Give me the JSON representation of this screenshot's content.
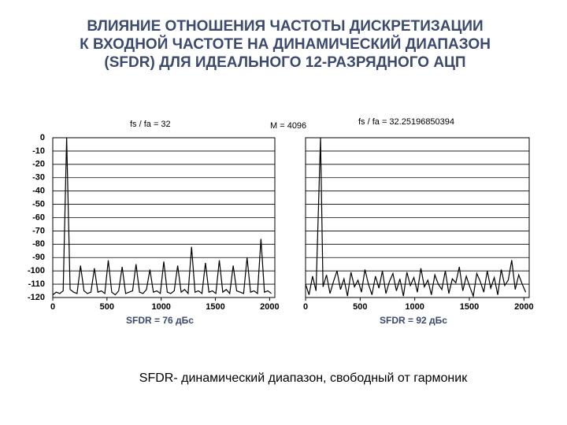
{
  "title": [
    "ВЛИЯНИЕ ОТНОШЕНИЯ ЧАСТОТЫ ДИСКРЕТИЗАЦИИ",
    "К ВХОДНОЙ ЧАСТОТЕ НА ДИНАМИЧЕСКИЙ ДИАПАЗОН",
    "(SFDR) ДЛЯ ИДЕАЛЬНОГО 12-РАЗРЯДНОГО АЦП"
  ],
  "annotation": "M = 4096",
  "caption": "SFDR- динамический диапазон, свободный от гармоник",
  "chart_data": [
    {
      "type": "line",
      "subtitle": "fs / fa = 32",
      "x_label": "SFDR = 76 дБс",
      "color": "#000000",
      "x": [
        0,
        32,
        64,
        96,
        128,
        160,
        192,
        224,
        256,
        288,
        320,
        352,
        384,
        416,
        448,
        480,
        512,
        544,
        576,
        608,
        640,
        672,
        704,
        736,
        768,
        800,
        832,
        864,
        896,
        928,
        960,
        992,
        1024,
        1056,
        1088,
        1120,
        1152,
        1184,
        1216,
        1248,
        1280,
        1312,
        1344,
        1376,
        1408,
        1440,
        1472,
        1504,
        1536,
        1568,
        1600,
        1632,
        1664,
        1696,
        1728,
        1760,
        1792,
        1824,
        1856,
        1888,
        1920,
        1952,
        1984,
        2016
      ],
      "values": [
        -118,
        -116,
        -117,
        -115,
        0,
        -114,
        -116,
        -117,
        -96,
        -115,
        -117,
        -116,
        -98,
        -116,
        -115,
        -117,
        -92,
        -116,
        -118,
        -115,
        -97,
        -117,
        -116,
        -115,
        -95,
        -116,
        -117,
        -114,
        -99,
        -116,
        -115,
        -117,
        -93,
        -116,
        -117,
        -115,
        -96,
        -116,
        -114,
        -117,
        -82,
        -116,
        -115,
        -117,
        -94,
        -116,
        -115,
        -117,
        -92,
        -116,
        -114,
        -117,
        -96,
        -115,
        -116,
        -117,
        -90,
        -116,
        -115,
        -117,
        -76,
        -116,
        -115,
        -117
      ],
      "xlim": [
        0,
        2048
      ],
      "ylim": [
        -120,
        0
      ],
      "xticks": [
        0,
        500,
        1000,
        1500,
        2000
      ],
      "yticks": [
        0,
        -10,
        -20,
        -30,
        -40,
        -50,
        -60,
        -70,
        -80,
        -90,
        -100,
        -110,
        -120
      ],
      "grid": true,
      "ytick_labels": true
    },
    {
      "type": "line",
      "subtitle": "fs / fa = 32.25196850394",
      "x_label": "SFDR = 92 дБс",
      "color": "#000000",
      "x": [
        0,
        32,
        64,
        96,
        137,
        160,
        192,
        224,
        256,
        288,
        320,
        352,
        384,
        416,
        448,
        480,
        512,
        544,
        576,
        608,
        640,
        672,
        704,
        736,
        768,
        800,
        832,
        864,
        896,
        928,
        960,
        992,
        1024,
        1056,
        1088,
        1120,
        1152,
        1184,
        1216,
        1248,
        1280,
        1312,
        1344,
        1376,
        1408,
        1440,
        1472,
        1504,
        1536,
        1568,
        1600,
        1632,
        1664,
        1696,
        1728,
        1760,
        1792,
        1824,
        1856,
        1888,
        1920,
        1952,
        1984,
        2016
      ],
      "values": [
        -110,
        -118,
        -104,
        -115,
        0,
        -112,
        -103,
        -117,
        -108,
        -100,
        -114,
        -106,
        -119,
        -101,
        -112,
        -107,
        -116,
        -99,
        -110,
        -118,
        -104,
        -113,
        -100,
        -117,
        -108,
        -102,
        -115,
        -106,
        -119,
        -101,
        -111,
        -105,
        -116,
        -98,
        -112,
        -107,
        -118,
        -103,
        -110,
        -114,
        -100,
        -117,
        -106,
        -109,
        -97,
        -115,
        -104,
        -112,
        -119,
        -102,
        -108,
        -116,
        -100,
        -113,
        -105,
        -118,
        -99,
        -111,
        -107,
        -92,
        -114,
        -103,
        -110,
        -116
      ],
      "xlim": [
        0,
        2048
      ],
      "ylim": [
        -120,
        0
      ],
      "xticks": [
        0,
        500,
        1000,
        1500,
        2000
      ],
      "yticks": [
        0,
        -10,
        -20,
        -30,
        -40,
        -50,
        -60,
        -70,
        -80,
        -90,
        -100,
        -110,
        -120
      ],
      "grid": true,
      "ytick_labels": false
    }
  ]
}
